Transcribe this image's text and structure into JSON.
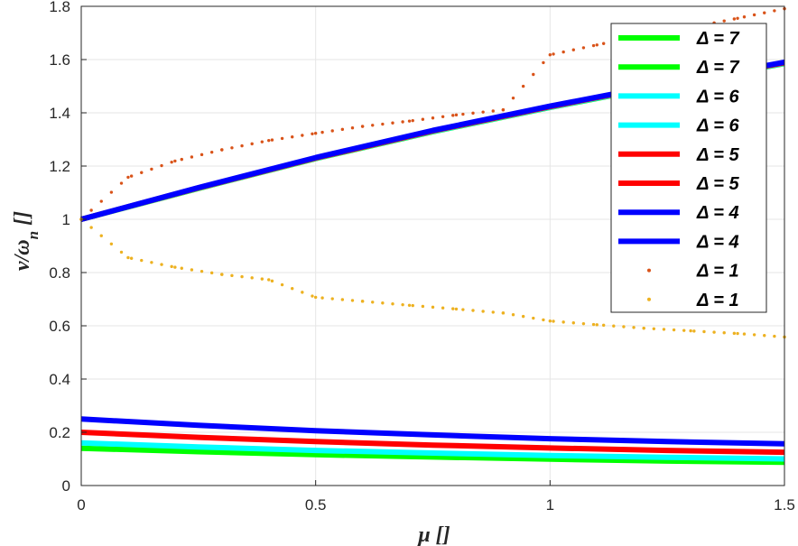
{
  "chart_data": {
    "type": "line",
    "xlabel": "μ []",
    "ylabel": "ν/ω",
    "ylabel_sub": "n",
    "ylabel_suffix": " []",
    "xlim": [
      0,
      1.5
    ],
    "ylim": [
      0,
      1.8
    ],
    "x_ticks": [
      "0",
      "0.5",
      "1",
      "1.5"
    ],
    "x_tick_values": [
      0,
      0.5,
      1,
      1.5
    ],
    "y_ticks": [
      "0",
      "0.2",
      "0.4",
      "0.6",
      "0.8",
      "1",
      "1.2",
      "1.4",
      "1.6",
      "1.8"
    ],
    "y_tick_values": [
      0,
      0.2,
      0.4,
      0.6,
      0.8,
      1.0,
      1.2,
      1.4,
      1.6,
      1.8
    ],
    "grid": true,
    "legend_position": "top-right",
    "series": [
      {
        "name": "Δ = 7",
        "style": "solid",
        "color": "#00ff00",
        "x": [
          0,
          0.25,
          0.5,
          0.75,
          1.0,
          1.25,
          1.5
        ],
        "y": [
          1.0,
          1.116,
          1.228,
          1.329,
          1.42,
          1.505,
          1.585
        ]
      },
      {
        "name": "Δ = 7",
        "style": "solid",
        "color": "#00ff00",
        "x": [
          0,
          0.25,
          0.5,
          0.75,
          1.0,
          1.25,
          1.5
        ],
        "y": [
          0.14,
          0.127,
          0.116,
          0.107,
          0.099,
          0.092,
          0.087
        ]
      },
      {
        "name": "Δ = 6",
        "style": "solid",
        "color": "#00ffff",
        "x": [
          0,
          0.25,
          0.5,
          0.75,
          1.0,
          1.25,
          1.5
        ],
        "y": [
          1.0,
          1.117,
          1.229,
          1.33,
          1.421,
          1.506,
          1.586
        ]
      },
      {
        "name": "Δ = 6",
        "style": "solid",
        "color": "#00ffff",
        "x": [
          0,
          0.25,
          0.5,
          0.75,
          1.0,
          1.25,
          1.5
        ],
        "y": [
          0.16,
          0.145,
          0.132,
          0.122,
          0.113,
          0.106,
          0.1
        ]
      },
      {
        "name": "Δ = 5",
        "style": "solid",
        "color": "#ff0000",
        "x": [
          0,
          0.25,
          0.5,
          0.75,
          1.0,
          1.25,
          1.5
        ],
        "y": [
          1.0,
          1.118,
          1.23,
          1.332,
          1.423,
          1.508,
          1.588
        ]
      },
      {
        "name": "Δ = 5",
        "style": "solid",
        "color": "#ff0000",
        "x": [
          0,
          0.25,
          0.5,
          0.75,
          1.0,
          1.25,
          1.5
        ],
        "y": [
          0.2,
          0.181,
          0.165,
          0.152,
          0.141,
          0.132,
          0.125
        ]
      },
      {
        "name": "Δ = 4",
        "style": "solid",
        "color": "#0000ff",
        "x": [
          0,
          0.25,
          0.5,
          0.75,
          1.0,
          1.25,
          1.5
        ],
        "y": [
          1.0,
          1.119,
          1.232,
          1.334,
          1.425,
          1.51,
          1.59
        ]
      },
      {
        "name": "Δ = 4",
        "style": "solid",
        "color": "#0000ff",
        "x": [
          0,
          0.25,
          0.5,
          0.75,
          1.0,
          1.25,
          1.5
        ],
        "y": [
          0.25,
          0.226,
          0.206,
          0.19,
          0.176,
          0.165,
          0.157
        ]
      },
      {
        "name": "Δ = 1",
        "style": "dots",
        "color": "#d95319",
        "x": [
          0,
          0.1,
          0.2,
          0.3,
          0.4,
          0.5,
          0.6,
          0.7,
          0.8,
          0.9,
          1.0,
          1.1,
          1.2,
          1.3,
          1.4,
          1.5
        ],
        "y": [
          1.0,
          1.158,
          1.219,
          1.261,
          1.296,
          1.323,
          1.349,
          1.369,
          1.392,
          1.411,
          1.618,
          1.655,
          1.691,
          1.721,
          1.755,
          1.791
        ]
      },
      {
        "name": "Δ = 1",
        "style": "dots",
        "color": "#edb120",
        "x": [
          0,
          0.1,
          0.2,
          0.3,
          0.4,
          0.5,
          0.6,
          0.7,
          0.8,
          0.9,
          1.0,
          1.1,
          1.2,
          1.3,
          1.4,
          1.5
        ],
        "y": [
          1.0,
          0.856,
          0.82,
          0.793,
          0.773,
          0.707,
          0.692,
          0.677,
          0.663,
          0.648,
          0.618,
          0.604,
          0.591,
          0.581,
          0.571,
          0.558
        ]
      }
    ]
  },
  "colors": {
    "grid": "#e6e6e6",
    "axis": "#262626"
  }
}
